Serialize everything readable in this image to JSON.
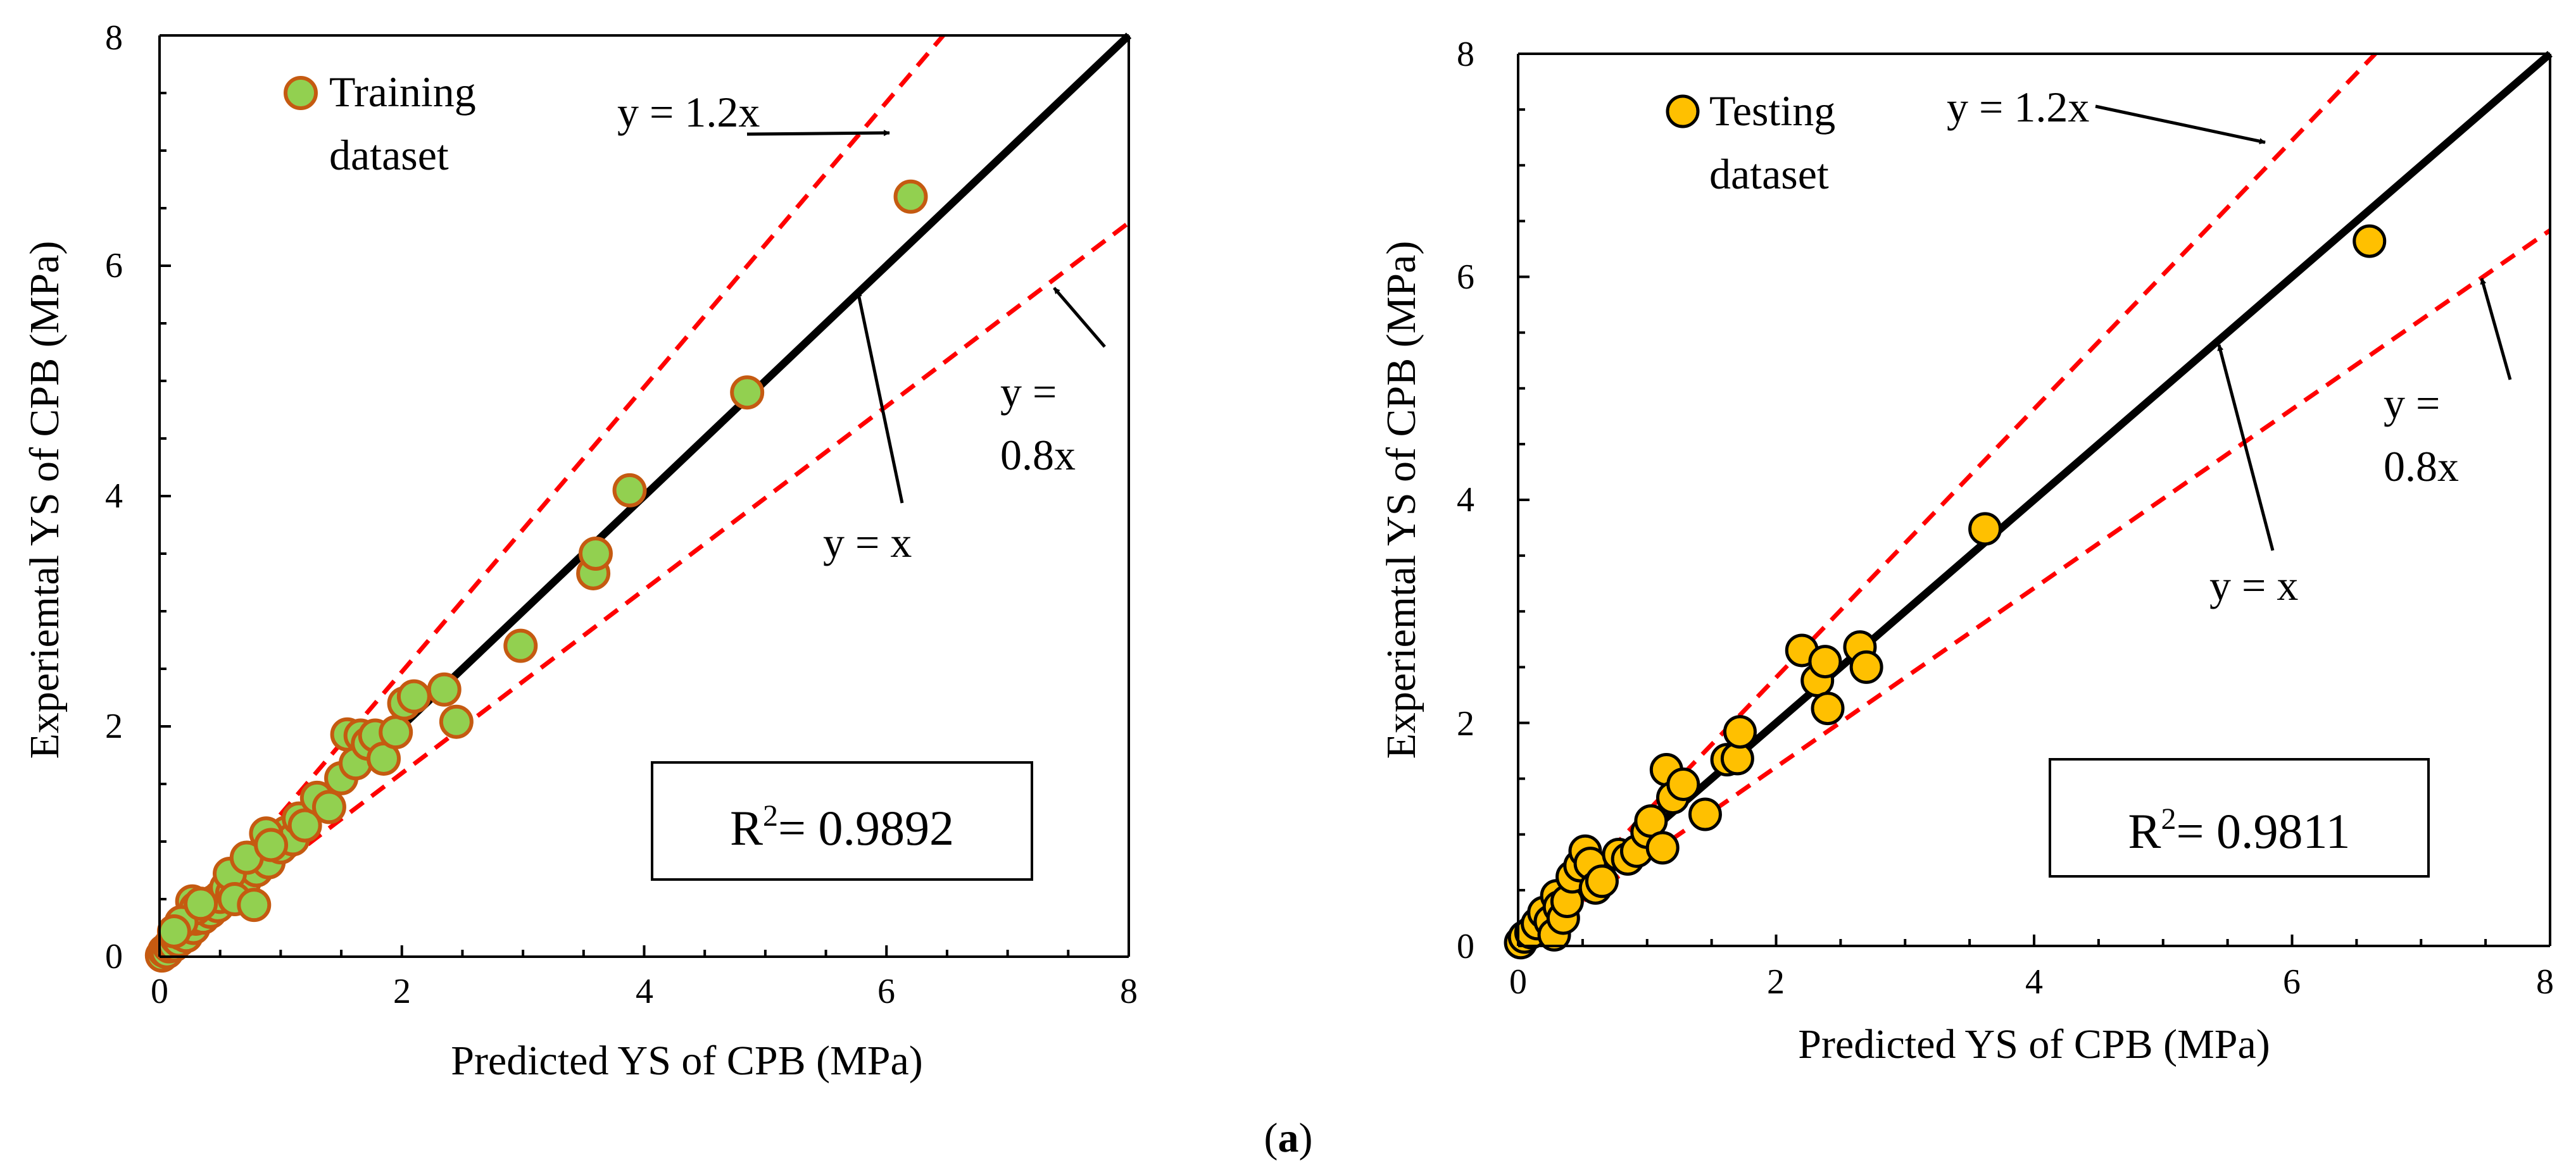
{
  "caption": "(a)",
  "caption_parts": {
    "open": "(",
    "letter": "a",
    "close": ")"
  },
  "colors": {
    "axis": "#000000",
    "identity_line": "#000000",
    "bound_lines": "#ff0000",
    "training_fill": "#92d050",
    "training_edge": "#c55a11",
    "testing_fill": "#ffc000",
    "testing_edge": "#000000"
  },
  "chart_data": [
    {
      "type": "scatter",
      "title": "",
      "xlabel": "Predicted YS of CPB (MPa)",
      "ylabel": "Experiemtal YS of CPB (MPa)",
      "xlim": [
        0,
        8
      ],
      "ylim": [
        0,
        8
      ],
      "xticks": [
        "0",
        "2",
        "4",
        "6",
        "8"
      ],
      "yticks": [
        "0",
        "2",
        "4",
        "6",
        "8"
      ],
      "legend": {
        "line1": "Training",
        "line2": "dataset",
        "placement": "top-left"
      },
      "r2_label": "R",
      "r2_sup": "2",
      "r2_value": "= 0.9892",
      "lines": [
        {
          "name": "y = x",
          "slope": 1.0,
          "style": "solid"
        },
        {
          "name": "y = 1.2x",
          "slope": 1.2,
          "style": "dashed"
        },
        {
          "name": "y = 0.8x",
          "slope": 0.8,
          "style": "dashed"
        }
      ],
      "annotations": {
        "upper": "y = 1.2x",
        "identity": "y = x",
        "lower_line1": "y =",
        "lower_line2": "0.8x"
      },
      "series": [
        {
          "name": "Training dataset",
          "points": [
            [
              0.02,
              0.01
            ],
            [
              0.04,
              0.05
            ],
            [
              0.06,
              0.04
            ],
            [
              0.08,
              0.09
            ],
            [
              0.1,
              0.12
            ],
            [
              0.12,
              0.1
            ],
            [
              0.14,
              0.16
            ],
            [
              0.16,
              0.14
            ],
            [
              0.18,
              0.2
            ],
            [
              0.2,
              0.22
            ],
            [
              0.22,
              0.18
            ],
            [
              0.24,
              0.27
            ],
            [
              0.26,
              0.3
            ],
            [
              0.28,
              0.25
            ],
            [
              0.3,
              0.33
            ],
            [
              0.33,
              0.38
            ],
            [
              0.36,
              0.34
            ],
            [
              0.39,
              0.42
            ],
            [
              0.42,
              0.39
            ],
            [
              0.45,
              0.48
            ],
            [
              0.48,
              0.44
            ],
            [
              0.5,
              0.52
            ],
            [
              0.55,
              0.6
            ],
            [
              0.6,
              0.55
            ],
            [
              0.65,
              0.7
            ],
            [
              0.7,
              0.65
            ],
            [
              0.75,
              0.8
            ],
            [
              0.8,
              0.75
            ],
            [
              0.85,
              0.9
            ],
            [
              0.9,
              0.82
            ],
            [
              0.95,
              1.0
            ],
            [
              1.0,
              0.95
            ],
            [
              1.05,
              1.08
            ],
            [
              1.1,
              1.02
            ],
            [
              1.15,
              1.2
            ],
            [
              1.2,
              1.14
            ],
            [
              0.27,
              0.48
            ],
            [
              0.3,
              0.42
            ],
            [
              0.18,
              0.3
            ],
            [
              0.12,
              0.22
            ],
            [
              0.34,
              0.46
            ],
            [
              0.58,
              0.72
            ],
            [
              0.62,
              0.5
            ],
            [
              0.72,
              0.86
            ],
            [
              0.78,
              0.45
            ],
            [
              0.88,
              1.07
            ],
            [
              0.92,
              0.97
            ],
            [
              1.3,
              1.38
            ],
            [
              1.4,
              1.3
            ],
            [
              1.5,
              1.55
            ],
            [
              1.55,
              1.93
            ],
            [
              1.62,
              1.68
            ],
            [
              1.66,
              1.92
            ],
            [
              1.72,
              1.85
            ],
            [
              1.78,
              1.92
            ],
            [
              1.85,
              1.72
            ],
            [
              1.95,
              1.95
            ],
            [
              2.02,
              2.2
            ],
            [
              2.1,
              2.26
            ],
            [
              2.35,
              2.32
            ],
            [
              2.45,
              2.04
            ],
            [
              2.98,
              2.7
            ],
            [
              3.58,
              3.33
            ],
            [
              3.6,
              3.5
            ],
            [
              3.88,
              4.05
            ],
            [
              4.85,
              4.9
            ],
            [
              6.2,
              6.6
            ]
          ]
        }
      ]
    },
    {
      "type": "scatter",
      "title": "",
      "xlabel": "Predicted YS of CPB (MPa)",
      "ylabel": "Experiemtal YS of CPB (MPa)",
      "xlim": [
        0,
        8
      ],
      "ylim": [
        0,
        8
      ],
      "xticks": [
        "0",
        "2",
        "4",
        "6",
        "8"
      ],
      "yticks": [
        "0",
        "2",
        "4",
        "6",
        "8"
      ],
      "legend": {
        "line1": "Testing",
        "line2": "dataset",
        "placement": "top-left"
      },
      "r2_label": "R",
      "r2_sup": "2",
      "r2_value": "= 0.9811",
      "lines": [
        {
          "name": "y = x",
          "slope": 1.0,
          "style": "solid"
        },
        {
          "name": "y = 1.2x",
          "slope": 1.2,
          "style": "dashed"
        },
        {
          "name": "y = 0.8x",
          "slope": 0.8,
          "style": "dashed"
        }
      ],
      "annotations": {
        "upper": "y = 1.2x",
        "identity": "y = x",
        "lower_line1": "y =",
        "lower_line2": "0.8x"
      },
      "series": [
        {
          "name": "Testing dataset",
          "points": [
            [
              0.02,
              0.03
            ],
            [
              0.05,
              0.08
            ],
            [
              0.1,
              0.12
            ],
            [
              0.15,
              0.2
            ],
            [
              0.2,
              0.3
            ],
            [
              0.25,
              0.22
            ],
            [
              0.28,
              0.1
            ],
            [
              0.3,
              0.45
            ],
            [
              0.32,
              0.35
            ],
            [
              0.35,
              0.25
            ],
            [
              0.38,
              0.4
            ],
            [
              0.42,
              0.62
            ],
            [
              0.48,
              0.72
            ],
            [
              0.52,
              0.85
            ],
            [
              0.56,
              0.74
            ],
            [
              0.6,
              0.52
            ],
            [
              0.65,
              0.58
            ],
            [
              0.78,
              0.82
            ],
            [
              0.85,
              0.78
            ],
            [
              0.92,
              0.85
            ],
            [
              1.0,
              1.02
            ],
            [
              1.03,
              1.12
            ],
            [
              1.12,
              0.88
            ],
            [
              1.15,
              1.58
            ],
            [
              1.2,
              1.33
            ],
            [
              1.28,
              1.45
            ],
            [
              1.45,
              1.18
            ],
            [
              1.62,
              1.67
            ],
            [
              1.7,
              1.68
            ],
            [
              1.72,
              1.92
            ],
            [
              2.2,
              2.65
            ],
            [
              2.32,
              2.38
            ],
            [
              2.38,
              2.55
            ],
            [
              2.4,
              2.13
            ],
            [
              2.65,
              2.68
            ],
            [
              2.7,
              2.5
            ],
            [
              3.62,
              3.74
            ],
            [
              6.6,
              6.32
            ]
          ]
        }
      ]
    }
  ]
}
